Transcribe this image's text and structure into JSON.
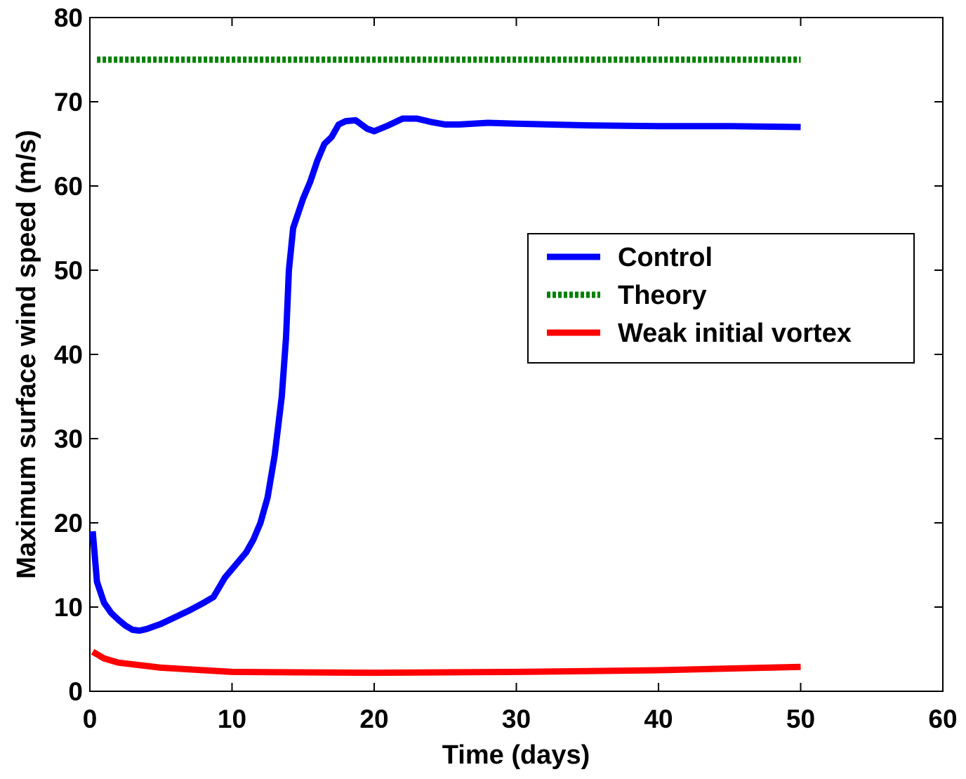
{
  "chart_data": {
    "type": "line",
    "xlabel": "Time (days)",
    "ylabel": "Maximum surface wind speed (m/s)",
    "xlim": [
      0,
      60
    ],
    "xticks": [
      0,
      10,
      20,
      30,
      40,
      50,
      60
    ],
    "ylim": [
      0,
      80
    ],
    "yticks": [
      0,
      10,
      20,
      30,
      40,
      50,
      60,
      70,
      80
    ],
    "grid": false,
    "legend": "center right",
    "series": [
      {
        "name": "Control",
        "color": "#0000ff",
        "style": "solid",
        "x": [
          0.2,
          0.5,
          1,
          1.5,
          2,
          2.5,
          3,
          3.5,
          4,
          5,
          6,
          7,
          8,
          8.7,
          9.5,
          10,
          11,
          11.5,
          12,
          12.5,
          13,
          13.5,
          13.8,
          14,
          14.3,
          14.5,
          15,
          15.5,
          16,
          16.5,
          17,
          17.5,
          18,
          18.7,
          19.5,
          20,
          21,
          22,
          23,
          24,
          25,
          26,
          28,
          30,
          35,
          40,
          45,
          50
        ],
        "values": [
          19,
          13,
          10.5,
          9.3,
          8.5,
          7.8,
          7.3,
          7.2,
          7.4,
          8,
          8.8,
          9.6,
          10.5,
          11.2,
          13.5,
          14.5,
          16.5,
          18,
          20,
          23,
          28,
          35,
          42,
          50,
          55,
          56,
          58.5,
          60.5,
          63,
          65,
          65.8,
          67.3,
          67.7,
          67.8,
          66.8,
          66.5,
          67.2,
          68,
          68,
          67.6,
          67.3,
          67.3,
          67.5,
          67.4,
          67.2,
          67.1,
          67.1,
          67
        ]
      },
      {
        "name": "Theory",
        "color": "#008000",
        "style": "dotted",
        "x": [
          0.5,
          50
        ],
        "values": [
          75,
          75
        ]
      },
      {
        "name": "Weak initial vortex",
        "color": "#ff0000",
        "style": "solid",
        "x": [
          0.2,
          1,
          2,
          5,
          10,
          20,
          30,
          40,
          50
        ],
        "values": [
          4.7,
          3.9,
          3.4,
          2.8,
          2.3,
          2.2,
          2.3,
          2.5,
          2.9
        ]
      }
    ]
  }
}
